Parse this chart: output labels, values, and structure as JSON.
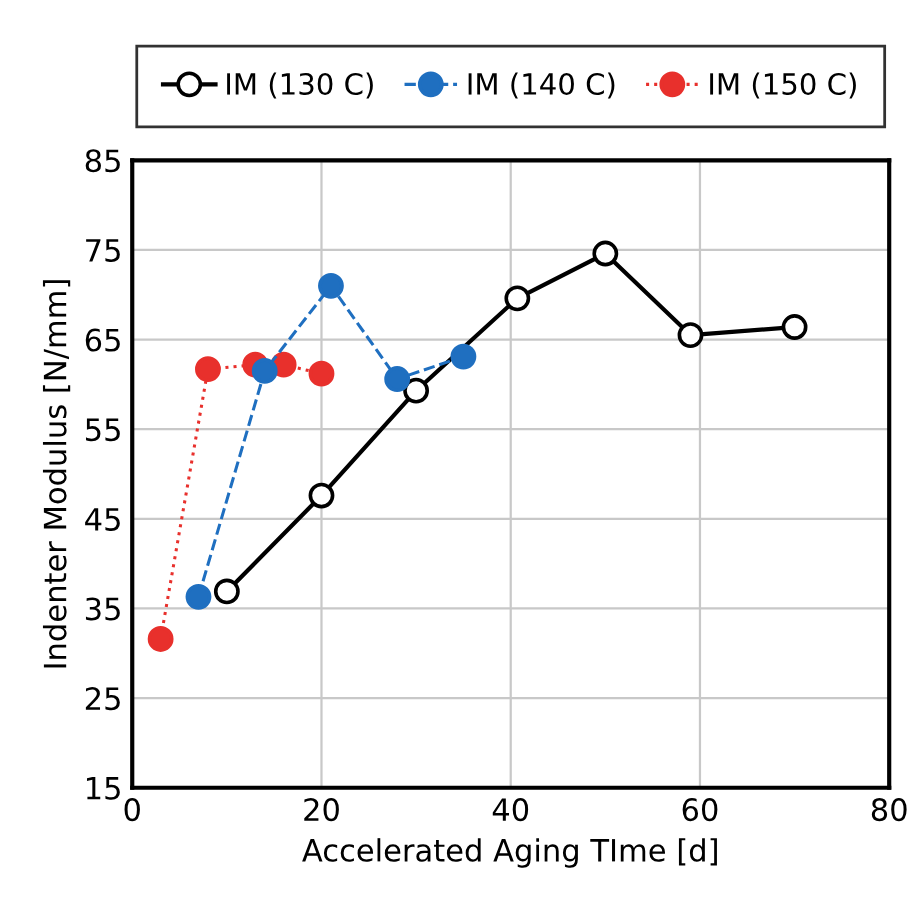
{
  "chart_data": {
    "type": "line",
    "xlabel": "Accelerated Aging TIme [d]",
    "ylabel": "Indenter Modulus [N/mm]",
    "xlim": [
      0,
      80
    ],
    "xticks": [
      0,
      20,
      40,
      60,
      80
    ],
    "ylim": [
      15,
      85
    ],
    "yticks": [
      15,
      25,
      35,
      45,
      55,
      65,
      75,
      85
    ],
    "grid": true,
    "legend": "top",
    "marker": "circle",
    "series": [
      {
        "name": "IM (130 C)",
        "color": "#000000",
        "line_style": "solid",
        "x": [
          10,
          20,
          30,
          40.7,
          50,
          59,
          70
        ],
        "values": [
          36.9,
          47.6,
          59.3,
          69.6,
          74.6,
          65.5,
          66.4
        ]
      },
      {
        "name": "IM (140 C)",
        "color": "#1f6fc0",
        "line_style": "dashed",
        "x": [
          7,
          14,
          21,
          28,
          35
        ],
        "values": [
          36.3,
          61.5,
          71.0,
          60.6,
          63.1
        ]
      },
      {
        "name": "IM (150 C)",
        "color": "#e8302c",
        "line_style": "dotted",
        "x": [
          3,
          8,
          13,
          16,
          20
        ],
        "values": [
          31.6,
          61.7,
          62.2,
          62.2,
          61.2
        ]
      }
    ]
  }
}
